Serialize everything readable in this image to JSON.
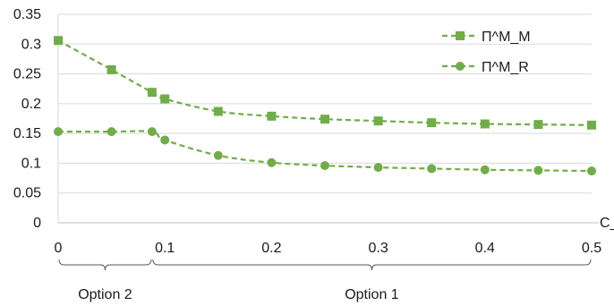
{
  "chart_data": {
    "type": "line",
    "xlabel": "C_l",
    "ylabel": "",
    "xlim": [
      0,
      0.5
    ],
    "ylim": [
      0,
      0.35
    ],
    "x_ticks": [
      "0",
      "0.1",
      "0.2",
      "0.3",
      "0.4",
      "0.5"
    ],
    "y_ticks": [
      "0",
      "0.05",
      "0.1",
      "0.15",
      "0.2",
      "0.25",
      "0.3",
      "0.35"
    ],
    "grid": "horizontal",
    "legend_position": "top-right",
    "series": [
      {
        "name": "Π^M_M",
        "marker": "square",
        "color": "#70ad47",
        "x": [
          0,
          0.05,
          0.088,
          0.1,
          0.15,
          0.2,
          0.25,
          0.3,
          0.35,
          0.4,
          0.45,
          0.5
        ],
        "y": [
          0.306,
          0.257,
          0.219,
          0.208,
          0.187,
          0.179,
          0.174,
          0.171,
          0.168,
          0.166,
          0.165,
          0.164
        ]
      },
      {
        "name": "Π^M_R",
        "marker": "circle",
        "color": "#70ad47",
        "x": [
          0,
          0.05,
          0.088,
          0.1,
          0.15,
          0.2,
          0.25,
          0.3,
          0.35,
          0.4,
          0.45,
          0.5
        ],
        "y": [
          0.153,
          0.153,
          0.153,
          0.139,
          0.113,
          0.101,
          0.096,
          0.093,
          0.091,
          0.089,
          0.088,
          0.087
        ]
      }
    ],
    "annotations": [
      {
        "label": "Option 2",
        "from": 0,
        "to": 0.088
      },
      {
        "label": "Option 1",
        "from": 0.088,
        "to": 0.5
      }
    ]
  }
}
